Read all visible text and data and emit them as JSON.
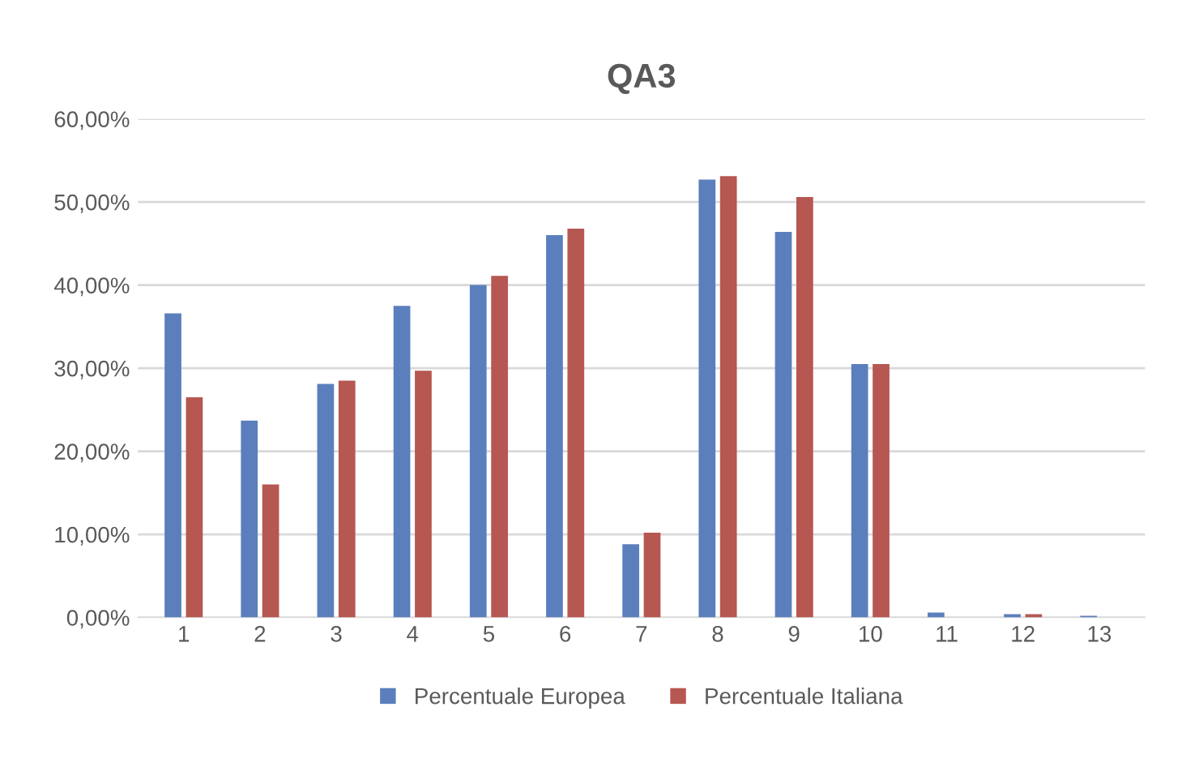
{
  "chart_data": {
    "type": "bar",
    "title": "QA3",
    "categories": [
      "1",
      "2",
      "3",
      "4",
      "5",
      "6",
      "7",
      "8",
      "9",
      "10",
      "11",
      "12",
      "13"
    ],
    "series": [
      {
        "name": "Percentuale Europea",
        "color": "#5b7fbc",
        "values": [
          36.6,
          23.7,
          28.1,
          37.5,
          40.0,
          46.0,
          8.8,
          52.7,
          46.4,
          30.5,
          0.6,
          0.4,
          0.2
        ]
      },
      {
        "name": "Percentuale Italiana",
        "color": "#b65751",
        "values": [
          26.5,
          16.0,
          28.5,
          29.7,
          41.1,
          46.8,
          10.2,
          53.1,
          50.6,
          30.5,
          0,
          0.4,
          0
        ]
      }
    ],
    "ylim": [
      0,
      60
    ],
    "yticks": [
      {
        "value": 0,
        "label": "0,00%"
      },
      {
        "value": 10,
        "label": "10,00%"
      },
      {
        "value": 20,
        "label": "20,00%"
      },
      {
        "value": 30,
        "label": "30,00%"
      },
      {
        "value": 40,
        "label": "40,00%"
      },
      {
        "value": 50,
        "label": "50,00%"
      },
      {
        "value": 60,
        "label": "60,00%"
      }
    ],
    "grid": "y",
    "legend": "bottom"
  }
}
